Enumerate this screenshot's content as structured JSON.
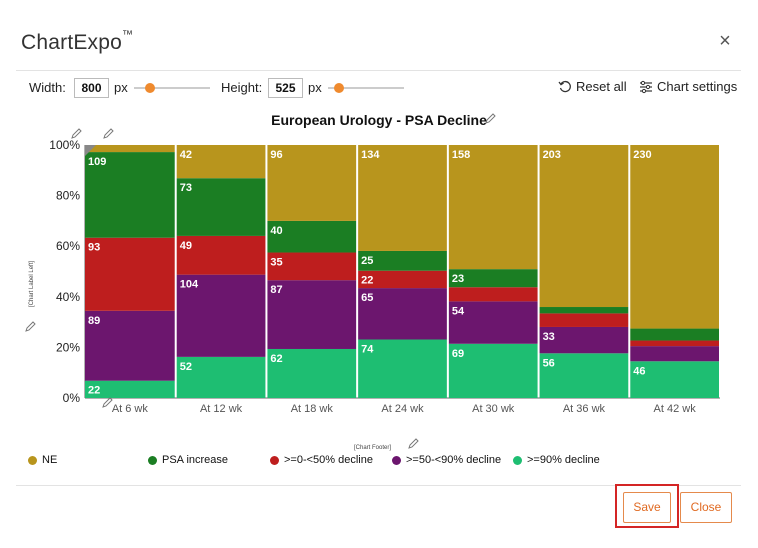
{
  "dialog": {
    "app_title": "ChartExpo",
    "trademark": "™",
    "close_icon": "×"
  },
  "toolbar": {
    "width_label": "Width:",
    "width_value": "800",
    "width_unit": "px",
    "height_label": "Height:",
    "height_value": "525",
    "height_unit": "px",
    "reset_label": "Reset all",
    "settings_label": "Chart settings"
  },
  "chart_data": {
    "type": "bar",
    "stacked": true,
    "normalized": true,
    "title": "European Urology - PSA Decline",
    "ylabel": "[Chart Label Left]",
    "footer": "[Chart Footer]",
    "ylim": [
      0,
      100
    ],
    "yticks": [
      "0%",
      "20%",
      "40%",
      "60%",
      "80%",
      "100%"
    ],
    "categories": [
      "At 6 wk",
      "At 12 wk",
      "At 18 wk",
      "At 24 wk",
      "At 30 wk",
      "At 36 wk",
      "At 42 wk"
    ],
    "series": [
      {
        "name": ">=90% decline",
        "color": "#1ebe72",
        "values": [
          22,
          52,
          62,
          74,
          69,
          56,
          46
        ]
      },
      {
        "name": ">=50-<90% decline",
        "color": "#6c166e",
        "values": [
          89,
          104,
          87,
          65,
          54,
          33,
          19
        ]
      },
      {
        "name": ">=0-<50% decline",
        "color": "#be1e1e",
        "values": [
          93,
          49,
          35,
          22,
          18,
          17,
          7
        ]
      },
      {
        "name": "PSA increase",
        "color": "#1b7e23",
        "values": [
          109,
          73,
          40,
          25,
          23,
          8,
          15
        ]
      },
      {
        "name": "NE",
        "color": "#b8951d",
        "values": [
          9,
          42,
          96,
          134,
          158,
          203,
          230
        ]
      }
    ],
    "labels": [
      [
        "22",
        "89",
        "93",
        "109",
        ""
      ],
      [
        "52",
        "104",
        "49",
        "73",
        "42"
      ],
      [
        "62",
        "87",
        "35",
        "40",
        "96"
      ],
      [
        "74",
        "65",
        "22",
        "25",
        "134"
      ],
      [
        "69",
        "54",
        "",
        "23",
        "158"
      ],
      [
        "56",
        "33",
        "",
        "",
        "203"
      ],
      [
        "46",
        "",
        "",
        "",
        "230"
      ]
    ]
  },
  "legend": {
    "items": [
      {
        "label": "NE",
        "color": "#b8951d"
      },
      {
        "label": "PSA increase",
        "color": "#1b7e23"
      },
      {
        "label": ">=0-<50% decline",
        "color": "#be1e1e"
      },
      {
        "label": ">=50-<90% decline",
        "color": "#6c166e"
      },
      {
        "label": ">=90% decline",
        "color": "#1ebe72"
      }
    ]
  },
  "actions": {
    "save_label": "Save",
    "close_label": "Close"
  }
}
